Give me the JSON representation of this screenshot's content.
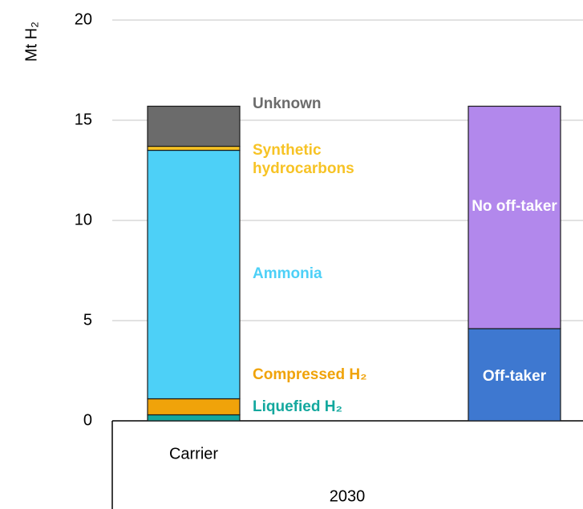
{
  "chart_data": {
    "type": "stacked_bar",
    "y_label": "Mt H₂",
    "categories": [
      "Carrier",
      null
    ],
    "group": "2030",
    "series": [
      {
        "name": "Liquefied H₂",
        "color": "#13a89e",
        "values": [
          0.3,
          null
        ]
      },
      {
        "name": "Compressed H₂",
        "color": "#f0a30a",
        "values": [
          0.8,
          null
        ]
      },
      {
        "name": "Ammonia",
        "color": "#4dd0f7",
        "values": [
          12.4,
          null
        ]
      },
      {
        "name": "Synthetic hydrocarbons",
        "color": "#f7c325",
        "values": [
          0.2,
          null
        ]
      },
      {
        "name": "Unknown",
        "color": "#6b6b6b",
        "values": [
          2.0,
          null
        ]
      },
      {
        "name": "Off-taker",
        "color": "#3e78d0",
        "values": [
          null,
          4.6
        ]
      },
      {
        "name": "No off-taker",
        "color": "#b288ec",
        "values": [
          null,
          11.1
        ]
      }
    ],
    "ylim": [
      0,
      20
    ],
    "yticks": [
      0,
      5,
      10,
      15,
      20
    ],
    "grid": true
  }
}
